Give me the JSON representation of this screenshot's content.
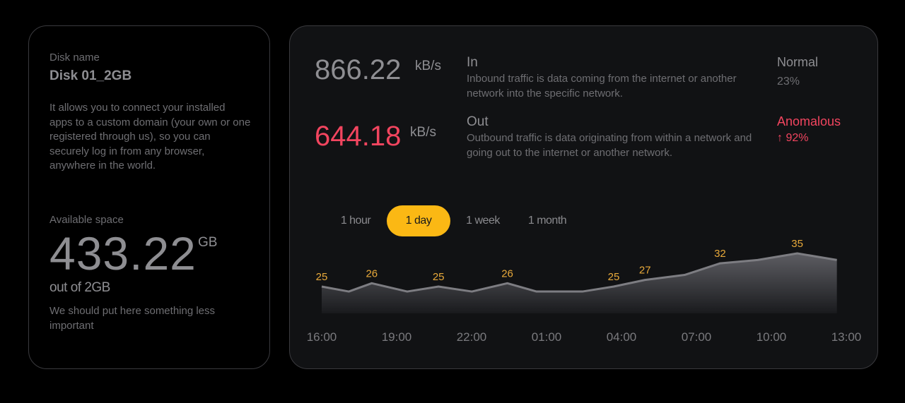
{
  "disk": {
    "name_label": "Disk name",
    "name": "Disk 01_2GB",
    "description": "It allows you to connect your installed apps to a custom domain (your own or one registered through us), so you can securely log in from any browser, anywhere in the world.",
    "space_label": "Available space",
    "space_value": "433.22",
    "space_unit": "GB",
    "space_total": "out of 2GB",
    "note": "We should put here something less important"
  },
  "traffic": {
    "in": {
      "value": "866.22",
      "unit": "kB/s",
      "title": "In",
      "description": "Inbound traffic is data coming from the internet or another network into the specific network.",
      "status": "Normal",
      "percent": "23%"
    },
    "out": {
      "value": "644.18",
      "unit": "kB/s",
      "title": "Out",
      "description": "Outbound traffic is data originating from within a network and going out to the internet or another network.",
      "status": "Anomalous",
      "percent": "↑ 92%"
    }
  },
  "colors": {
    "accent": "#fbb814",
    "anomalous": "#f2455f",
    "line": "#7d7d82",
    "label": "#e8a93a"
  },
  "ranges": {
    "options": [
      "1 hour",
      "1 day",
      "1 week",
      "1 month"
    ],
    "selected": "1 day"
  },
  "chart_data": {
    "type": "area",
    "x": [
      "16:00",
      "17:05",
      "18:00",
      "19:25",
      "20:40",
      "22:00",
      "23:25",
      "00:35",
      "02:25",
      "03:40",
      "04:55",
      "06:30",
      "07:55",
      "09:25",
      "11:00",
      "12:35"
    ],
    "values": [
      25,
      23.5,
      26,
      23.5,
      25,
      23.5,
      26,
      23.5,
      23.5,
      25,
      27,
      28.5,
      32,
      33,
      35,
      33
    ],
    "data_labels": [
      {
        "i": 0,
        "text": "25"
      },
      {
        "i": 2,
        "text": "26"
      },
      {
        "i": 4,
        "text": "25"
      },
      {
        "i": 6,
        "text": "26"
      },
      {
        "i": 9,
        "text": "25"
      },
      {
        "i": 10,
        "text": "27"
      },
      {
        "i": 12,
        "text": "32"
      },
      {
        "i": 14,
        "text": "35"
      }
    ],
    "x_ticks": [
      "16:00",
      "19:00",
      "22:00",
      "01:00",
      "04:00",
      "07:00",
      "10:00",
      "13:00"
    ],
    "grid": false
  }
}
